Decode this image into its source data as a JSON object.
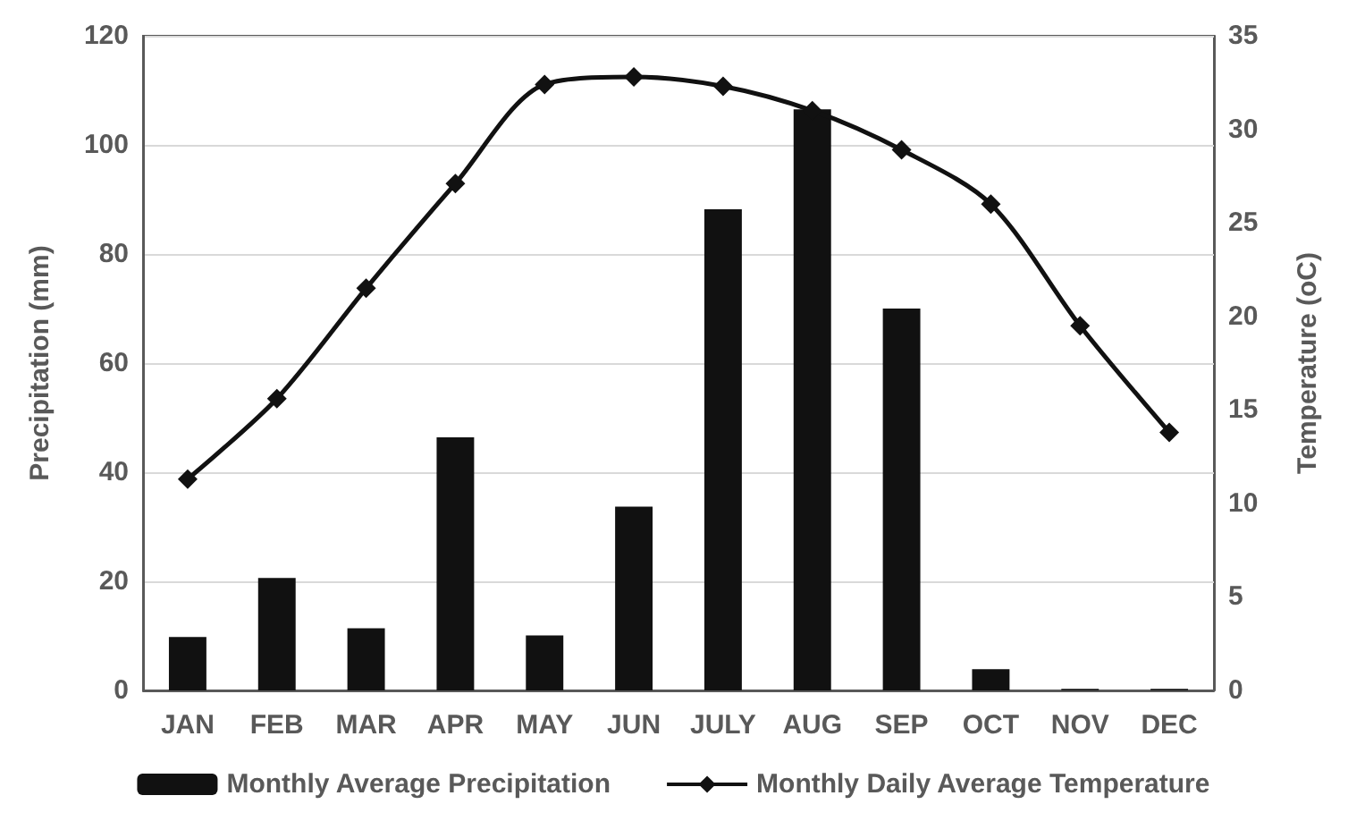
{
  "chart_data": {
    "type": "bar",
    "ylabel": "Precipitation (mm)",
    "y2label": "Temperature (oC)",
    "categories": [
      "JAN",
      "FEB",
      "MAR",
      "APR",
      "MAY",
      "JUN",
      "JULY",
      "AUG",
      "SEP",
      "OCT",
      "NOV",
      "DEC"
    ],
    "series": [
      {
        "name": "Monthly Average Precipitation",
        "color": "#111111",
        "values": [
          9.8,
          20.6,
          11.4,
          46.4,
          10.1,
          33.7,
          88.2,
          106.5,
          70,
          3.9,
          0.3,
          0.3
        ]
      },
      {
        "name": "Monthly Daily Average Temperature",
        "type": "line",
        "axis": "y2",
        "color": "#111111",
        "marker": "diamond",
        "values": [
          11.3,
          15.6,
          21.5,
          27.1,
          32.4,
          32.8,
          32.3,
          31.0,
          28.9,
          26.0,
          19.5,
          13.8
        ]
      }
    ],
    "ylim": [
      0,
      120
    ],
    "yticks": [
      0,
      20,
      40,
      60,
      80,
      100,
      120
    ],
    "y2lim": [
      0,
      35
    ],
    "y2ticks": [
      0,
      5,
      10,
      15,
      20,
      25,
      30,
      35
    ],
    "grid": "y",
    "legend": "bottom"
  }
}
